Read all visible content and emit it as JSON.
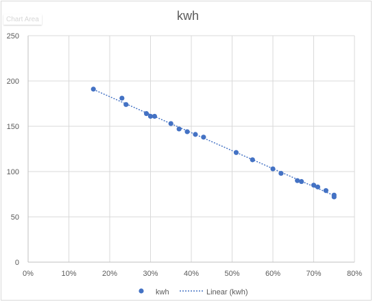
{
  "tooltip": {
    "text": "Chart Area"
  },
  "chart_data": {
    "type": "scatter",
    "title": "kwh",
    "xlabel": "",
    "ylabel": "",
    "xlim": [
      0,
      0.8
    ],
    "ylim": [
      0,
      250
    ],
    "x_ticks": [
      0,
      0.1,
      0.2,
      0.3,
      0.4,
      0.5,
      0.6,
      0.7,
      0.8
    ],
    "x_tick_labels": [
      "0%",
      "10%",
      "20%",
      "30%",
      "40%",
      "50%",
      "60%",
      "70%",
      "80%"
    ],
    "y_ticks": [
      0,
      50,
      100,
      150,
      200,
      250
    ],
    "y_tick_labels": [
      "0",
      "50",
      "100",
      "150",
      "200",
      "250"
    ],
    "grid": true,
    "legend_position": "bottom",
    "series": [
      {
        "name": "kwh",
        "color": "#4472c4",
        "x": [
          0.16,
          0.23,
          0.24,
          0.29,
          0.3,
          0.31,
          0.35,
          0.37,
          0.39,
          0.41,
          0.43,
          0.51,
          0.55,
          0.6,
          0.62,
          0.66,
          0.67,
          0.7,
          0.71,
          0.73,
          0.75,
          0.75
        ],
        "y": [
          191,
          181,
          174,
          164,
          161,
          161,
          153,
          147,
          144,
          141,
          138,
          121,
          113,
          103,
          98,
          90,
          89,
          85,
          83,
          79,
          74,
          72
        ]
      }
    ],
    "trendline": {
      "name": "Linear (kwh)",
      "type": "linear",
      "color": "#4472c4",
      "x_range": [
        0.16,
        0.75
      ]
    }
  }
}
